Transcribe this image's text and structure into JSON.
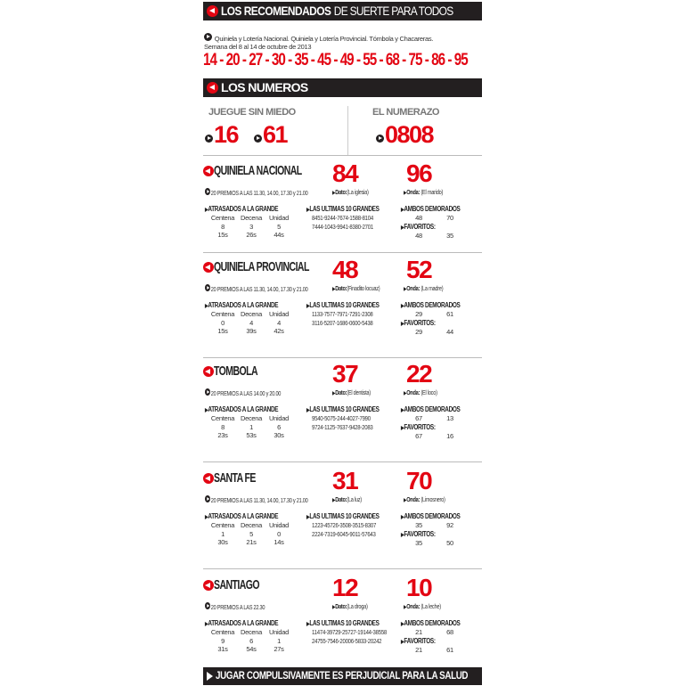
{
  "header": {
    "title_bold": "LOS RECOMENDADOS",
    "title_thin": "DE SUERTE PARA TODOS"
  },
  "intro": {
    "line1": "Quiniela y Lotería Nacional. Quiniela y Lotería Provincial. Tómbola y Chacareras.",
    "line2": "Semana del 8 al 14 de octubre de 2013"
  },
  "recommended_numbers": "14 - 20 - 27 - 30 - 35 - 45 - 49 - 55 - 68 - 75 - 86 - 95",
  "numeros": {
    "title": "LOS NUMEROS",
    "juegue_label": "JUEGUE SIN MIEDO",
    "juegue_1": "16",
    "juegue_2": "61",
    "numerazo_label": "EL NUMERAZO",
    "numerazo": "0808"
  },
  "labels": {
    "atrasados": "ATRASADOS A LA GRANDE",
    "ultimas": "LAS ULTIMAS 10 GRANDES",
    "ambos": "AMBOS DEMORADOS",
    "favoritos": "FAVORITOS:",
    "dato": "Dato:",
    "onda": "Onda:",
    "centena": "Centena",
    "decena": "Decena",
    "unidad": "Unidad"
  },
  "sections": [
    {
      "title": "QUINIELA NACIONAL",
      "num1": "84",
      "num2": "96",
      "premios": "20 PREMIOS A LAS 11.30, 14.00, 17.30 y 21.00",
      "dato": "(La iglesia)",
      "onda": "(El marido)",
      "atrasados": [
        "8",
        "3",
        "5"
      ],
      "atrasados_s": [
        "15s",
        "26s",
        "44s"
      ],
      "ultimas": [
        "8451-9244-7674-1588-8104",
        "7444-1043-9941-8380-2701"
      ],
      "ambos": [
        "48",
        "70"
      ],
      "favoritos": [
        "48",
        "35"
      ]
    },
    {
      "title": "QUINIELA PROVINCIAL",
      "num1": "48",
      "num2": "52",
      "premios": "20 PREMIOS A LAS 11.30, 14.00, 17.30 y 21.00",
      "dato": "(Finadito locuaz)",
      "onda": "(La madre)",
      "atrasados": [
        "0",
        "4",
        "4"
      ],
      "atrasados_s": [
        "15s",
        "39s",
        "42s"
      ],
      "ultimas": [
        "1133-7577-7971-7291-2308",
        "3116-5207-1686-0600-5438"
      ],
      "ambos": [
        "29",
        "61"
      ],
      "favoritos": [
        "29",
        "44"
      ]
    },
    {
      "title": "TOMBOLA",
      "num1": "37",
      "num2": "22",
      "premios": "20 PREMIOS A LAS 14.00 y 20.00",
      "dato": "(El dentista)",
      "onda": "(El loco)",
      "atrasados": [
        "8",
        "1",
        "6"
      ],
      "atrasados_s": [
        "23s",
        "53s",
        "30s"
      ],
      "ultimas": [
        "9540-5075-244-4027-7990",
        "9724-1125-7637-9428-2083"
      ],
      "ambos": [
        "67",
        "13"
      ],
      "favoritos": [
        "67",
        "16"
      ]
    },
    {
      "title": "SANTA FE",
      "num1": "31",
      "num2": "70",
      "premios": "20 PREMIOS A LAS 11.30, 14.00, 17.30 y 21.00",
      "dato": "(La luz)",
      "onda": "(Limosnero)",
      "atrasados": [
        "1",
        "5",
        "0"
      ],
      "atrasados_s": [
        "30s",
        "21s",
        "14s"
      ],
      "ultimas": [
        "1223-45726-3508-3515-8307",
        "2224-7319-6045-9011-57643"
      ],
      "ambos": [
        "35",
        "92"
      ],
      "favoritos": [
        "35",
        "50"
      ]
    },
    {
      "title": "SANTIAGO",
      "num1": "12",
      "num2": "10",
      "premios": "20 PREMIOS A LAS 22.30",
      "dato": "(La droga)",
      "onda": "(La leche)",
      "atrasados": [
        "9",
        "6",
        "1"
      ],
      "atrasados_s": [
        "31s",
        "54s",
        "27s"
      ],
      "ultimas": [
        "11474-39729-25727-19144-38558",
        "24755-7546-20006-5833-20242"
      ],
      "ambos": [
        "21",
        "68"
      ],
      "favoritos": [
        "21",
        "61"
      ]
    }
  ],
  "footer": "JUGAR COMPULSIVAMENTE ES PERJUDICIAL PARA LA SALUD",
  "colors": {
    "accent": "#e30613",
    "bar": "#231f20"
  }
}
